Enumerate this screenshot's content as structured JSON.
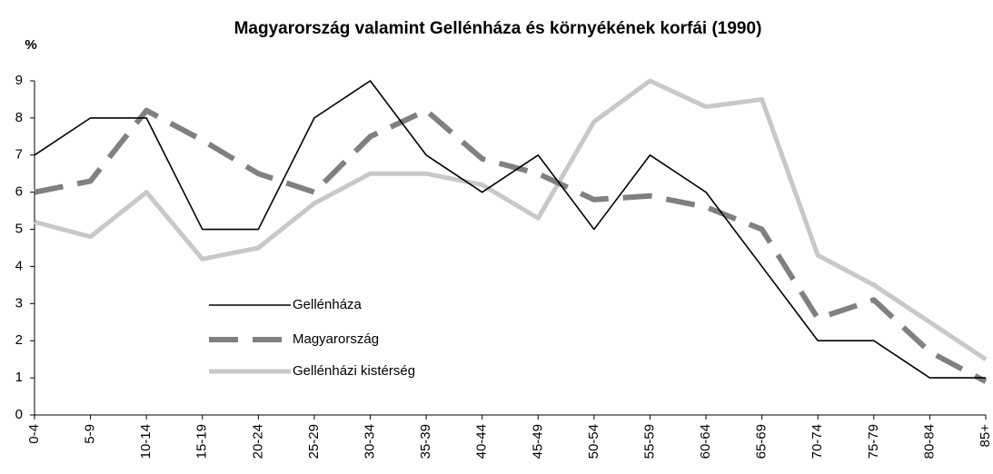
{
  "chart_data": {
    "type": "line",
    "title": "Magyarország valamint Gellénháza és környékének korfái (1990)",
    "y_label": "%",
    "categories": [
      "0-4",
      "5-9",
      "10-14",
      "15-19",
      "20-24",
      "25-29",
      "30-34",
      "35-39",
      "40-44",
      "45-49",
      "50-54",
      "55-59",
      "60-64",
      "65-69",
      "70-74",
      "75-79",
      "80-84",
      "85+"
    ],
    "series": [
      {
        "name": "Gellénháza",
        "color": "#000000",
        "values": [
          7,
          8,
          8,
          5,
          5,
          8,
          9,
          7,
          6,
          7,
          5,
          7,
          6,
          4,
          2,
          2,
          1,
          1
        ]
      },
      {
        "name": "Magyarország",
        "color": "#808080",
        "values": [
          6,
          6.3,
          8.2,
          7.4,
          6.5,
          6,
          7.5,
          8.2,
          6.9,
          6.5,
          5.8,
          5.9,
          5.6,
          5,
          2.6,
          3.1,
          1.7,
          0.9
        ]
      },
      {
        "name": "Gellénházi kistérség",
        "color": "#c8c8c8",
        "values": [
          5.2,
          4.8,
          6,
          4.2,
          4.5,
          5.7,
          6.5,
          6.5,
          6.2,
          5.3,
          7.9,
          9,
          8.3,
          8.5,
          4.3,
          3.5,
          2.5,
          1.5
        ]
      }
    ],
    "ylim": [
      0,
      9
    ],
    "yticks": [
      0,
      1,
      2,
      3,
      4,
      5,
      6,
      7,
      8,
      9
    ],
    "grid": false
  }
}
